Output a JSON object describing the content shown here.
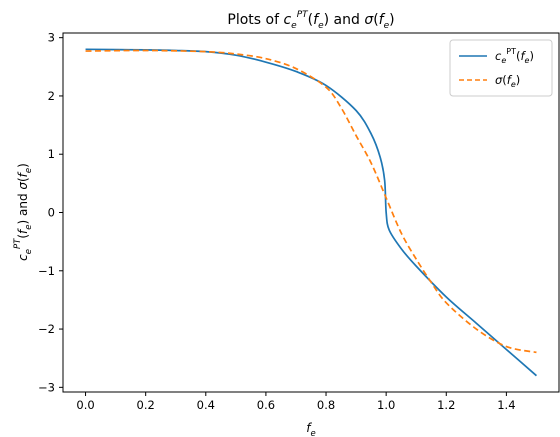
{
  "chart_data": {
    "type": "line",
    "title": "Plots of c_e^PT(f_e) and σ(f_e)",
    "xlabel": "f_e",
    "ylabel": "c_e^PT(f_e) and σ(f_e)",
    "xlim": [
      -0.075,
      1.575
    ],
    "ylim": [
      -3.08,
      3.08
    ],
    "xticks": [
      "0.0",
      "0.2",
      "0.4",
      "0.6",
      "0.8",
      "1.0",
      "1.2",
      "1.4"
    ],
    "yticks": [
      "3",
      "2",
      "1",
      "0",
      "−1",
      "−2",
      "−3"
    ],
    "legend": {
      "placement": "top-right"
    },
    "grid": false,
    "series": [
      {
        "name": "c_e^PT(f_e)",
        "color": "#1f77b4",
        "style": "solid",
        "x": [
          0.0,
          0.2,
          0.3,
          0.4,
          0.5,
          0.6,
          0.7,
          0.8,
          0.9,
          0.95,
          0.98,
          0.995,
          1.0,
          1.01,
          1.05,
          1.1,
          1.2,
          1.3,
          1.4,
          1.5
        ],
        "y": [
          2.8,
          2.79,
          2.78,
          2.76,
          2.7,
          2.58,
          2.42,
          2.18,
          1.75,
          1.35,
          0.95,
          0.55,
          0.0,
          -0.3,
          -0.62,
          -0.92,
          -1.45,
          -1.9,
          -2.35,
          -2.8
        ]
      },
      {
        "name": "σ(f_e)",
        "color": "#ff7f0e",
        "style": "dashed",
        "x": [
          0.0,
          0.2,
          0.4,
          0.5,
          0.6,
          0.7,
          0.8,
          0.85,
          0.9,
          0.95,
          1.0,
          1.05,
          1.1,
          1.15,
          1.2,
          1.3,
          1.4,
          1.5
        ],
        "y": [
          2.77,
          2.78,
          2.76,
          2.72,
          2.64,
          2.47,
          2.15,
          1.8,
          1.32,
          0.85,
          0.25,
          -0.35,
          -0.8,
          -1.2,
          -1.55,
          -2.0,
          -2.3,
          -2.4
        ]
      }
    ]
  }
}
